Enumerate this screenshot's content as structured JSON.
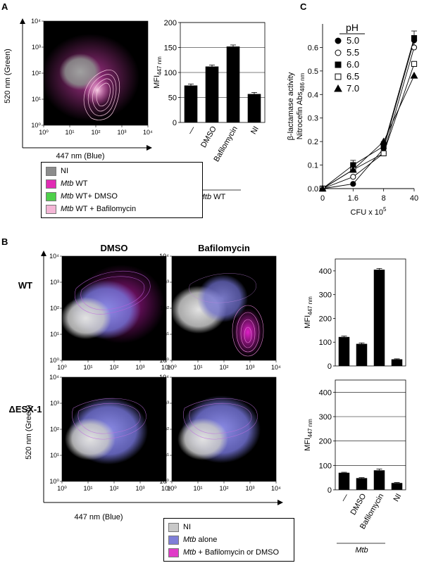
{
  "panels": {
    "a": {
      "letter": "A",
      "scatter": {
        "x_label": "447 nm (Blue)",
        "y_label": "520 nm (Green)",
        "x_ticks": [
          "10⁰",
          "10¹",
          "10²",
          "10³",
          "10⁴"
        ],
        "y_ticks": [
          "10⁰",
          "10¹",
          "10²",
          "10³",
          "10⁴"
        ]
      },
      "legend": [
        {
          "italic": "",
          "text": "NI",
          "color": "#8c8c8c"
        },
        {
          "italic": "Mtb",
          "text": " WT",
          "color": "#e12bb4"
        },
        {
          "italic": "Mtb",
          "text": " WT+ DMSO",
          "color": "#4ed04a"
        },
        {
          "italic": "Mtb",
          "text": " WT + Bafilomycin",
          "color": "#f4b6d6"
        }
      ]
    },
    "b": {
      "letter": "B",
      "col_titles": [
        "DMSO",
        "Bafilomycin"
      ],
      "row_titles": [
        "WT",
        "ΔESX-1"
      ],
      "x_label": "447 nm (Blue)",
      "y_label": "520 nm (Green)",
      "x_ticks": [
        "10⁰",
        "10¹",
        "10²",
        "10³",
        "10⁴"
      ],
      "y_ticks": [
        "10⁰",
        "10¹",
        "10²",
        "10³",
        "10⁴"
      ],
      "legend": [
        {
          "italic": "",
          "text": "NI",
          "color": "#c8c8c8"
        },
        {
          "italic": "Mtb",
          "text": " alone",
          "color": "#7f7fd8"
        },
        {
          "italic": "Mtb",
          "text": " + Bafilomycin or DMSO",
          "color": "#e13cc8"
        }
      ]
    },
    "c": {
      "letter": "C",
      "legend_title": "pH"
    }
  },
  "chart_data": [
    {
      "id": "A-bar",
      "type": "bar",
      "categories": [
        "—",
        "DMSO",
        "Bafilomycin",
        "NI"
      ],
      "values": [
        74,
        112,
        152,
        57
      ],
      "errors": [
        3,
        3,
        3,
        3
      ],
      "ylabel": "MFI",
      "ylabel_sub": "447 nm",
      "ylim": [
        0,
        200
      ],
      "yticks": [
        0,
        50,
        100,
        150,
        200
      ],
      "group_label_italic": "Mtb",
      "group_label": " WT",
      "grid": true
    },
    {
      "id": "B-bar-WT",
      "type": "bar",
      "categories": [
        "—",
        "DMSO",
        "Bafilomycin",
        "NI"
      ],
      "values": [
        122,
        93,
        405,
        28
      ],
      "errors": [
        4,
        4,
        5,
        2
      ],
      "ylabel": "MFI",
      "ylabel_sub": "447 nm",
      "ylim": [
        0,
        450
      ],
      "yticks": [
        0,
        100,
        200,
        300,
        400
      ],
      "grid": false
    },
    {
      "id": "B-bar-ESX1",
      "type": "bar",
      "categories": [
        "—",
        "DMSO",
        "Bafilomycin",
        "NI"
      ],
      "values": [
        70,
        48,
        80,
        28
      ],
      "errors": [
        2,
        2,
        5,
        2
      ],
      "ylabel": "MFI",
      "ylabel_sub": "447 nm",
      "ylim": [
        0,
        450
      ],
      "yticks": [
        0,
        100,
        200,
        300,
        400
      ],
      "group_label_italic": "Mtb",
      "group_label": "",
      "grid": true
    },
    {
      "id": "C-line",
      "type": "line",
      "categories": [
        "0",
        "1.6",
        "8",
        "40"
      ],
      "xlabel": "CFU x 10",
      "xlabel_sup": "5",
      "ylabel_line1": "β-lactamase activity",
      "ylabel_line2": "Nitrocefin Abs",
      "ylabel_sub": "486 nm",
      "ylim": [
        0,
        0.7
      ],
      "yticks": [
        "0.0",
        "0.1",
        "0.2",
        "0.3",
        "0.4",
        "0.5",
        "0.6"
      ],
      "series": [
        {
          "name": "5.0",
          "marker": "circle-filled",
          "values": [
            0.0,
            0.02,
            0.17,
            0.63
          ]
        },
        {
          "name": "5.5",
          "marker": "circle-open",
          "values": [
            0.0,
            0.05,
            0.15,
            0.6
          ]
        },
        {
          "name": "6.0",
          "marker": "square-filled",
          "values": [
            0.0,
            0.1,
            0.18,
            0.64
          ]
        },
        {
          "name": "6.5",
          "marker": "square-open",
          "values": [
            0.0,
            0.08,
            0.15,
            0.53
          ]
        },
        {
          "name": "7.0",
          "marker": "triangle-filled",
          "values": [
            0.0,
            0.08,
            0.2,
            0.48
          ]
        }
      ]
    }
  ]
}
